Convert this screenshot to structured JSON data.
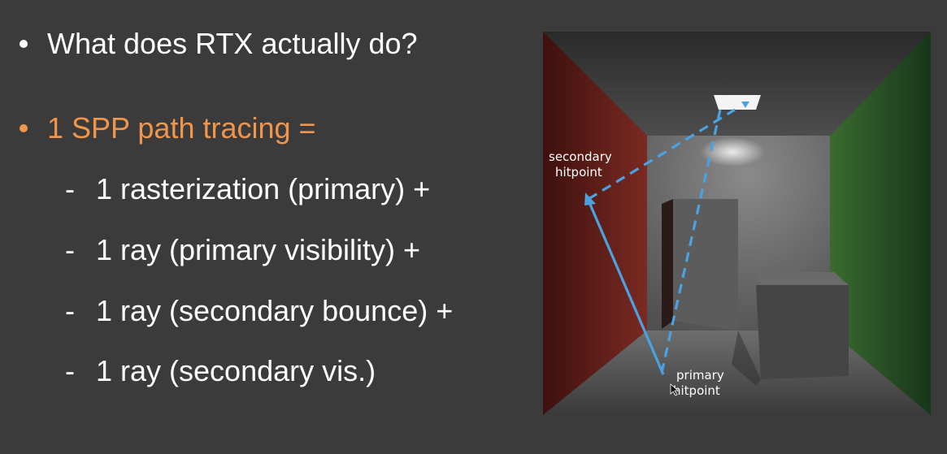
{
  "slide": {
    "bullets": [
      {
        "text": "What does RTX actually do?"
      },
      {
        "text": "1 SPP path tracing ="
      }
    ],
    "sub_items": [
      {
        "dash": "-",
        "text": "1 rasterization (primary) +"
      },
      {
        "dash": "-",
        "text": "1 ray (primary visibility) +"
      },
      {
        "dash": "-",
        "text": "1 ray (secondary bounce) +"
      },
      {
        "dash": "-",
        "text": "1 ray (secondary vis.)"
      }
    ],
    "colors": {
      "background": "#3b3b3b",
      "highlight": "#f0954c",
      "ray": "#4aa3e0"
    }
  },
  "figure": {
    "labels": {
      "secondary_line1": "secondary",
      "secondary_line2": "hitpoint",
      "primary_line1": "primary",
      "primary_line2": "hitpoint"
    }
  }
}
